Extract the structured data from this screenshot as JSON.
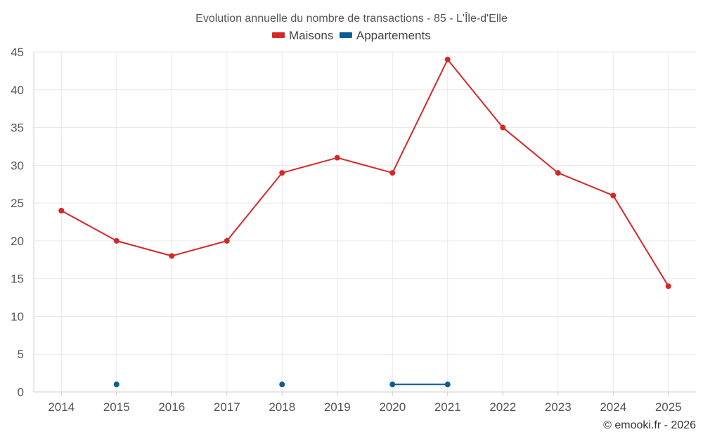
{
  "chart_data": {
    "type": "line",
    "title": "Evolution annuelle du nombre de transactions - 85 - L'Île-d'Elle",
    "categories": [
      "2014",
      "2015",
      "2016",
      "2017",
      "2018",
      "2019",
      "2020",
      "2021",
      "2022",
      "2023",
      "2024",
      "2025"
    ],
    "series": [
      {
        "name": "Maisons",
        "color": "#d62728",
        "values": [
          24,
          20,
          18,
          20,
          29,
          31,
          29,
          44,
          35,
          29,
          26,
          14
        ]
      },
      {
        "name": "Appartements",
        "color": "#0b5e94",
        "values": [
          null,
          1,
          null,
          null,
          1,
          null,
          1,
          1,
          null,
          null,
          null,
          null
        ]
      }
    ],
    "ylim": [
      0,
      45
    ],
    "yticks": [
      0,
      5,
      10,
      15,
      20,
      25,
      30,
      35,
      40,
      45
    ],
    "xlabel": "",
    "ylabel": "",
    "grid": true,
    "legend_position": "top-center"
  },
  "credit": "© emooki.fr - 2026"
}
